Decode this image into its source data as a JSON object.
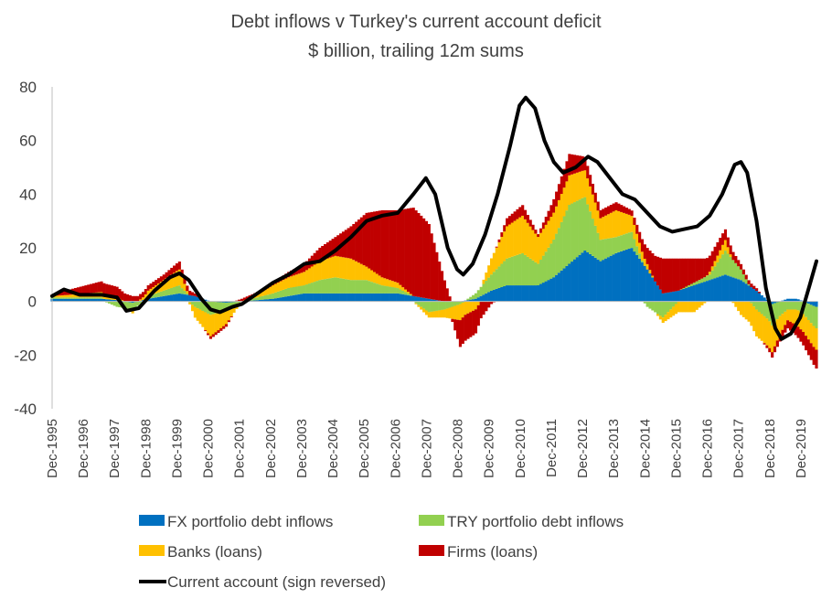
{
  "chart_data": {
    "type": "bar",
    "stacked": true,
    "title": "Debt inflows v Turkey's current account deficit",
    "subtitle": "$ billion, trailing 12m sums",
    "xlabel": "",
    "ylabel": "",
    "ylim": [
      -40,
      80
    ],
    "yticks": [
      "80",
      "60",
      "40",
      "20",
      "0",
      "-20",
      "-40"
    ],
    "ytick_values": [
      80,
      60,
      40,
      20,
      0,
      -20,
      -40
    ],
    "x_tick_labels": [
      "Dec-1995",
      "Dec-1996",
      "Dec-1997",
      "Dec-1998",
      "Dec-1999",
      "Dec-2000",
      "Dec-2001",
      "Dec-2002",
      "Dec-2003",
      "Dec-2004",
      "Dec-2005",
      "Dec-2006",
      "Dec-2007",
      "Dec-2008",
      "Dec-2009",
      "Dec-2010",
      "Dec-2011",
      "Dec-2012",
      "Dec-2013",
      "Dec-2014",
      "Dec-2015",
      "Dec-2016",
      "Dec-2017",
      "Dec-2018",
      "Dec-2019"
    ],
    "x_start": 1995.92,
    "x_end": 2020.42,
    "grid": false,
    "legend_position": "bottom",
    "series": [
      {
        "name": "FX portfolio debt inflows",
        "color": "#0070C0",
        "kind": "bar",
        "points": [
          [
            1995.9,
            1
          ],
          [
            1996.5,
            1
          ],
          [
            1997,
            1
          ],
          [
            1997.5,
            1
          ],
          [
            1998,
            0.5
          ],
          [
            1998.5,
            -0.5
          ],
          [
            1999,
            1
          ],
          [
            1999.5,
            2
          ],
          [
            2000,
            3
          ],
          [
            2000.5,
            2
          ],
          [
            2001,
            0
          ],
          [
            2001.5,
            -0.5
          ],
          [
            2002,
            0
          ],
          [
            2002.5,
            0.5
          ],
          [
            2003,
            1
          ],
          [
            2003.5,
            2
          ],
          [
            2004,
            3
          ],
          [
            2004.5,
            3
          ],
          [
            2005,
            3
          ],
          [
            2005.5,
            3
          ],
          [
            2006,
            3
          ],
          [
            2006.5,
            3
          ],
          [
            2007,
            3
          ],
          [
            2007.5,
            2
          ],
          [
            2008,
            1
          ],
          [
            2008.5,
            0
          ],
          [
            2009,
            0
          ],
          [
            2009.5,
            1
          ],
          [
            2010,
            4
          ],
          [
            2010.5,
            6
          ],
          [
            2011,
            6
          ],
          [
            2011.5,
            6
          ],
          [
            2012,
            9
          ],
          [
            2012.5,
            14
          ],
          [
            2013,
            19
          ],
          [
            2013.5,
            15
          ],
          [
            2014,
            18
          ],
          [
            2014.5,
            20
          ],
          [
            2015,
            12
          ],
          [
            2015.5,
            3
          ],
          [
            2016,
            4
          ],
          [
            2016.5,
            6
          ],
          [
            2017,
            8
          ],
          [
            2017.5,
            10
          ],
          [
            2018,
            8
          ],
          [
            2018.5,
            4
          ],
          [
            2019,
            -1
          ],
          [
            2019.5,
            1
          ],
          [
            2019.8,
            1
          ],
          [
            2020.4,
            -2
          ]
        ]
      },
      {
        "name": "TRY portfolio debt inflows",
        "color": "#92D050",
        "kind": "bar",
        "points": [
          [
            1995.9,
            0.5
          ],
          [
            1996.5,
            0.5
          ],
          [
            1997,
            0.5
          ],
          [
            1997.5,
            0.5
          ],
          [
            1998,
            -2
          ],
          [
            1998.5,
            -3
          ],
          [
            1999,
            1
          ],
          [
            1999.5,
            2
          ],
          [
            2000,
            3
          ],
          [
            2000.5,
            -2
          ],
          [
            2001,
            -5
          ],
          [
            2001.5,
            -3
          ],
          [
            2002,
            0
          ],
          [
            2002.5,
            1
          ],
          [
            2003,
            2
          ],
          [
            2003.5,
            3
          ],
          [
            2004,
            3
          ],
          [
            2004.5,
            5
          ],
          [
            2005,
            6
          ],
          [
            2005.5,
            5
          ],
          [
            2006,
            5
          ],
          [
            2006.5,
            3
          ],
          [
            2007,
            2
          ],
          [
            2007.5,
            0
          ],
          [
            2008,
            -4
          ],
          [
            2008.5,
            -3
          ],
          [
            2009,
            -1
          ],
          [
            2009.5,
            2
          ],
          [
            2010,
            6
          ],
          [
            2010.5,
            10
          ],
          [
            2011,
            12
          ],
          [
            2011.5,
            8
          ],
          [
            2012,
            14
          ],
          [
            2012.5,
            22
          ],
          [
            2013,
            20
          ],
          [
            2013.5,
            8
          ],
          [
            2014,
            6
          ],
          [
            2014.5,
            6
          ],
          [
            2015,
            -2
          ],
          [
            2015.5,
            -6
          ],
          [
            2016,
            0
          ],
          [
            2016.5,
            1
          ],
          [
            2017,
            2
          ],
          [
            2017.5,
            9
          ],
          [
            2018,
            4
          ],
          [
            2018.5,
            -3
          ],
          [
            2019,
            -8
          ],
          [
            2019.5,
            -3
          ],
          [
            2019.8,
            -3
          ],
          [
            2020.4,
            -8
          ]
        ]
      },
      {
        "name": "Banks (loans)",
        "color": "#FFC000",
        "kind": "bar",
        "points": [
          [
            1995.9,
            0.5
          ],
          [
            1996.5,
            1
          ],
          [
            1997,
            1.5
          ],
          [
            1997.5,
            2
          ],
          [
            1998,
            1
          ],
          [
            1998.5,
            -1
          ],
          [
            1999,
            2
          ],
          [
            1999.5,
            4
          ],
          [
            2000,
            6
          ],
          [
            2000.5,
            -4
          ],
          [
            2001,
            -8
          ],
          [
            2001.5,
            -5
          ],
          [
            2002,
            0
          ],
          [
            2002.5,
            1
          ],
          [
            2003,
            3
          ],
          [
            2003.5,
            4
          ],
          [
            2004,
            5
          ],
          [
            2004.5,
            7
          ],
          [
            2005,
            8
          ],
          [
            2005.5,
            8
          ],
          [
            2006,
            5
          ],
          [
            2006.5,
            3
          ],
          [
            2007,
            2
          ],
          [
            2007.5,
            0
          ],
          [
            2008,
            -2
          ],
          [
            2008.5,
            -3
          ],
          [
            2009,
            -6
          ],
          [
            2009.5,
            -3
          ],
          [
            2010,
            6
          ],
          [
            2010.5,
            12
          ],
          [
            2011,
            14
          ],
          [
            2011.5,
            10
          ],
          [
            2012,
            10
          ],
          [
            2012.5,
            11
          ],
          [
            2013,
            10
          ],
          [
            2013.5,
            8
          ],
          [
            2014,
            10
          ],
          [
            2014.5,
            6
          ],
          [
            2015,
            2
          ],
          [
            2015.5,
            -2
          ],
          [
            2016,
            -4
          ],
          [
            2016.5,
            -4
          ],
          [
            2017,
            1
          ],
          [
            2017.5,
            4
          ],
          [
            2018,
            -5
          ],
          [
            2018.5,
            -10
          ],
          [
            2019,
            -10
          ],
          [
            2019.5,
            -4
          ],
          [
            2019.8,
            -6
          ],
          [
            2020.4,
            -8
          ]
        ]
      },
      {
        "name": "Firms (loans)",
        "color": "#C00000",
        "kind": "bar",
        "points": [
          [
            1995.9,
            0.5
          ],
          [
            1996.5,
            2
          ],
          [
            1997,
            3
          ],
          [
            1997.5,
            4
          ],
          [
            1998,
            4
          ],
          [
            1998.5,
            2
          ],
          [
            1999,
            2
          ],
          [
            1999.5,
            2
          ],
          [
            2000,
            3
          ],
          [
            2000.5,
            1
          ],
          [
            2001,
            -1
          ],
          [
            2001.5,
            -1
          ],
          [
            2002,
            1
          ],
          [
            2002.5,
            1
          ],
          [
            2003,
            1
          ],
          [
            2003.5,
            2
          ],
          [
            2004,
            3
          ],
          [
            2004.5,
            5
          ],
          [
            2005,
            7
          ],
          [
            2005.5,
            12
          ],
          [
            2006,
            20
          ],
          [
            2006.5,
            25
          ],
          [
            2007,
            27
          ],
          [
            2007.5,
            33
          ],
          [
            2008,
            28
          ],
          [
            2008.5,
            8
          ],
          [
            2009,
            -10
          ],
          [
            2009.5,
            -9
          ],
          [
            2010,
            -1
          ],
          [
            2010.5,
            3
          ],
          [
            2011,
            4
          ],
          [
            2011.5,
            1
          ],
          [
            2012,
            5
          ],
          [
            2012.5,
            8
          ],
          [
            2013,
            5
          ],
          [
            2013.5,
            3
          ],
          [
            2014,
            3
          ],
          [
            2014.5,
            2
          ],
          [
            2015,
            6
          ],
          [
            2015.5,
            13
          ],
          [
            2016,
            12
          ],
          [
            2016.5,
            9
          ],
          [
            2017,
            6
          ],
          [
            2017.5,
            4
          ],
          [
            2018,
            2
          ],
          [
            2018.5,
            1
          ],
          [
            2019,
            -2
          ],
          [
            2019.5,
            -3
          ],
          [
            2019.8,
            -4
          ],
          [
            2020.4,
            -7
          ]
        ]
      },
      {
        "name": "Current account (sign reversed)",
        "color": "#000000",
        "kind": "line",
        "points": [
          [
            1995.92,
            2
          ],
          [
            1996.3,
            4.5
          ],
          [
            1996.8,
            2.5
          ],
          [
            1997.5,
            2.5
          ],
          [
            1998.0,
            1.5
          ],
          [
            1998.3,
            -3.5
          ],
          [
            1998.7,
            -2.5
          ],
          [
            1999.2,
            4
          ],
          [
            1999.7,
            9
          ],
          [
            2000.0,
            10.5
          ],
          [
            2000.3,
            8
          ],
          [
            2000.7,
            1
          ],
          [
            2001.0,
            -3
          ],
          [
            2001.3,
            -4
          ],
          [
            2001.7,
            -2
          ],
          [
            2002.0,
            -1
          ],
          [
            2002.5,
            3
          ],
          [
            2003.0,
            7
          ],
          [
            2003.5,
            10
          ],
          [
            2004.0,
            14
          ],
          [
            2004.5,
            15
          ],
          [
            2005.0,
            19
          ],
          [
            2005.5,
            24
          ],
          [
            2006.0,
            30
          ],
          [
            2006.5,
            32
          ],
          [
            2007.0,
            33
          ],
          [
            2007.5,
            40
          ],
          [
            2007.9,
            46
          ],
          [
            2008.2,
            40
          ],
          [
            2008.6,
            20
          ],
          [
            2008.9,
            12
          ],
          [
            2009.1,
            10
          ],
          [
            2009.4,
            14
          ],
          [
            2009.8,
            25
          ],
          [
            2010.2,
            40
          ],
          [
            2010.6,
            58
          ],
          [
            2010.9,
            73
          ],
          [
            2011.1,
            76
          ],
          [
            2011.4,
            72
          ],
          [
            2011.7,
            60
          ],
          [
            2012.0,
            52
          ],
          [
            2012.3,
            48
          ],
          [
            2012.7,
            50
          ],
          [
            2013.1,
            54
          ],
          [
            2013.4,
            52
          ],
          [
            2013.8,
            46
          ],
          [
            2014.2,
            40
          ],
          [
            2014.6,
            38
          ],
          [
            2015.0,
            33
          ],
          [
            2015.4,
            28
          ],
          [
            2015.8,
            26
          ],
          [
            2016.2,
            27
          ],
          [
            2016.6,
            28
          ],
          [
            2017.0,
            32
          ],
          [
            2017.4,
            40
          ],
          [
            2017.8,
            51
          ],
          [
            2018.0,
            52
          ],
          [
            2018.2,
            48
          ],
          [
            2018.5,
            30
          ],
          [
            2018.8,
            5
          ],
          [
            2019.1,
            -10
          ],
          [
            2019.3,
            -14
          ],
          [
            2019.6,
            -12
          ],
          [
            2019.9,
            -6
          ],
          [
            2020.2,
            6
          ],
          [
            2020.42,
            15
          ]
        ]
      }
    ]
  }
}
